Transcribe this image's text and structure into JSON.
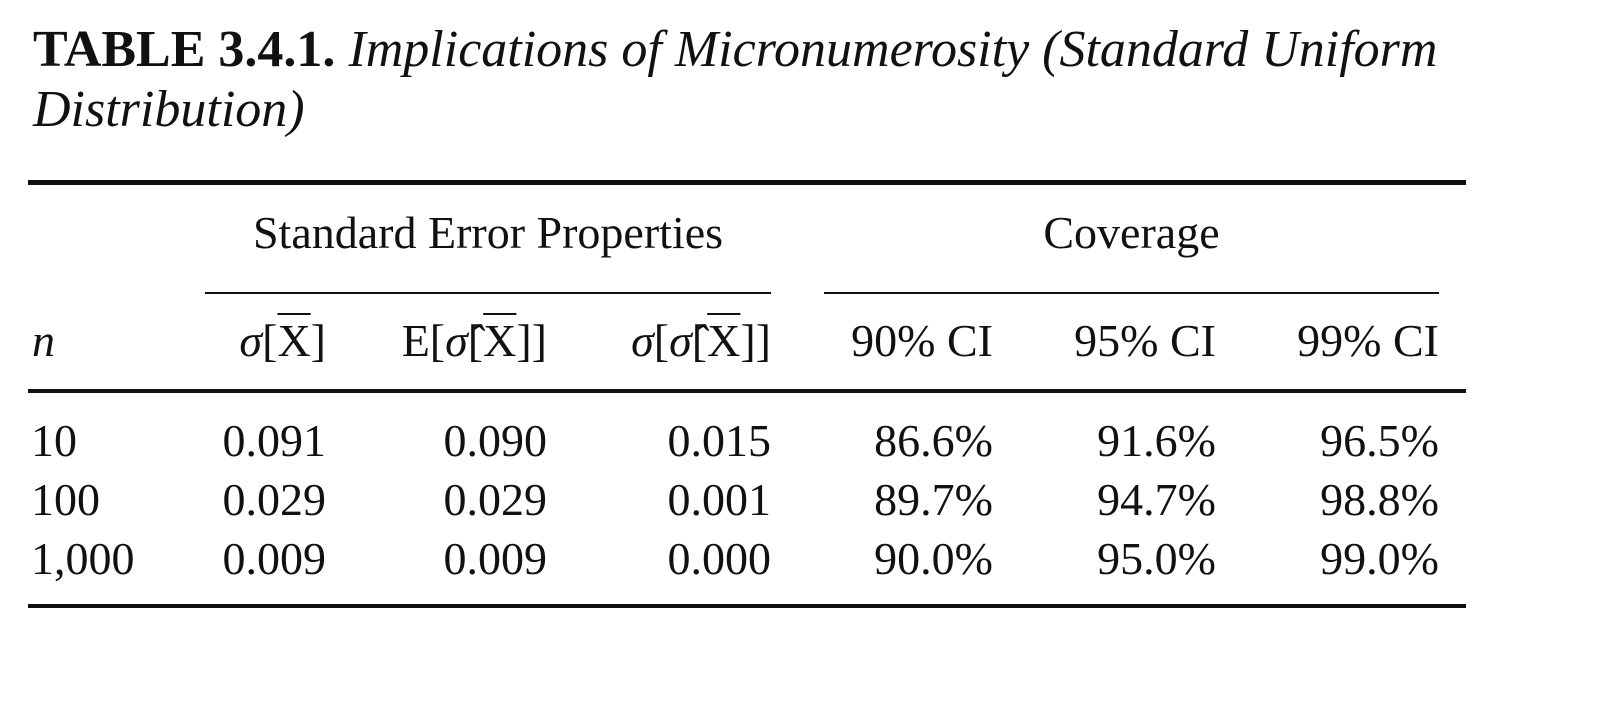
{
  "caption": {
    "label": "TABLE 3.4.1.",
    "description": "Implications of Micronumerosity (Standard Uniform Distribution)"
  },
  "table": {
    "group_headers": [
      "Standard Error Properties",
      "Coverage"
    ],
    "columns": {
      "n": "n",
      "se_sigma": {
        "sigma": "σ",
        "open": "[",
        "xbar": "X",
        "close": "]"
      },
      "se_expect": {
        "E": "E[",
        "sigma_hat": "σ̂",
        "open": "[",
        "xbar": "X",
        "close": "]]"
      },
      "se_sd": {
        "sigma": "σ",
        "open": "[",
        "sigma_hat": "σ̂",
        "open2": "[",
        "xbar": "X",
        "close": "]]"
      },
      "ci90": "90% CI",
      "ci95": "95% CI",
      "ci99": "99% CI"
    },
    "rows": [
      {
        "n": "10",
        "sigma_xbar": "0.091",
        "e_sigma_hat": "0.090",
        "sigma_sigma_hat": "0.015",
        "ci90": "86.6%",
        "ci95": "91.6%",
        "ci99": "96.5%"
      },
      {
        "n": "100",
        "sigma_xbar": "0.029",
        "e_sigma_hat": "0.029",
        "sigma_sigma_hat": "0.001",
        "ci90": "89.7%",
        "ci95": "94.7%",
        "ci99": "98.8%"
      },
      {
        "n": "1,000",
        "sigma_xbar": "0.009",
        "e_sigma_hat": "0.009",
        "sigma_sigma_hat": "0.000",
        "ci90": "90.0%",
        "ci95": "95.0%",
        "ci99": "99.0%"
      }
    ]
  }
}
